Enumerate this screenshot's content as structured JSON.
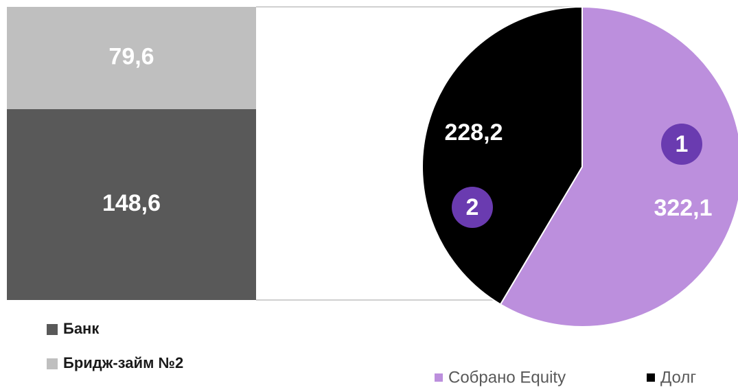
{
  "chart_data": [
    {
      "type": "bar",
      "stacked": true,
      "categories": [
        null
      ],
      "series": [
        {
          "name": "Банк",
          "color": "#595959",
          "values": [
            148.6
          ],
          "value_labels": [
            "148,6"
          ]
        },
        {
          "name": "Бридж-займ №2",
          "color": "#bfbfbf",
          "values": [
            79.6
          ],
          "value_labels": [
            "79,6"
          ]
        }
      ],
      "legend": "bottom-left"
    },
    {
      "type": "pie",
      "categories": [
        "Собрано Equity",
        "Долг"
      ],
      "values": [
        322.1,
        228.2
      ],
      "value_labels": [
        "322,1",
        "228,2"
      ],
      "colors": [
        "#bc8fdd",
        "#000000"
      ],
      "annotations": [
        "1",
        "2"
      ],
      "legend": "bottom-right"
    }
  ]
}
